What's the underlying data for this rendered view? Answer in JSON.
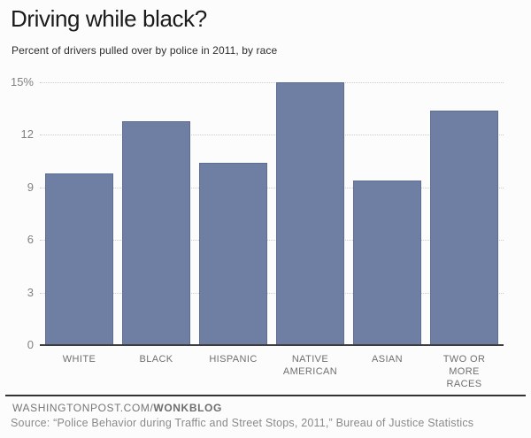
{
  "page": {
    "background": "#fcfcfc"
  },
  "header": {
    "title": "Driving while black?",
    "subtitle": "Percent of drivers pulled over by police in 2011, by race"
  },
  "chart_data": {
    "type": "bar",
    "title": "Driving while black?",
    "subtitle": "Percent of drivers pulled over by police in 2011, by race",
    "categories": [
      "WHITE",
      "BLACK",
      "HISPANIC",
      "NATIVE\nAMERICAN",
      "ASIAN",
      "TWO OR\nMORE RACES"
    ],
    "values": [
      9.8,
      12.8,
      10.4,
      15.0,
      9.4,
      13.4
    ],
    "xlabel": "",
    "ylabel": "",
    "ylim": [
      0,
      15
    ],
    "yticks": [
      {
        "value": 0,
        "label": "0"
      },
      {
        "value": 3,
        "label": "3"
      },
      {
        "value": 6,
        "label": "6"
      },
      {
        "value": 9,
        "label": "9"
      },
      {
        "value": 12,
        "label": "12"
      },
      {
        "value": 15,
        "label": "15%"
      }
    ],
    "grid": true,
    "gridline_style": "dotted",
    "legend": false,
    "colors": {
      "bar": "#6e7fa3",
      "bar_border": "#5d6e92",
      "gridline": "#cbcbcb",
      "axis_line": "#3e3e3e",
      "background": "#fcfcfc"
    }
  },
  "footer": {
    "brand_prefix": "WASHINGTONPOST.COM/",
    "brand_bold": "WONKBLOG",
    "source": "Source: “Police Behavior during Traffic and Street Stops, 2011,” Bureau of Justice Statistics"
  }
}
